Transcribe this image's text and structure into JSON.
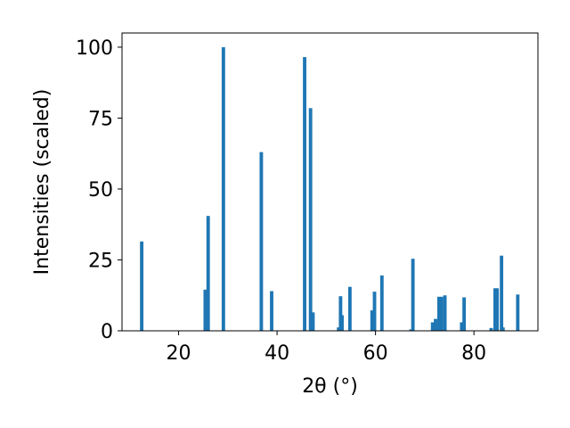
{
  "chart_data": {
    "type": "bar",
    "xlabel": "2θ (°)",
    "ylabel": "Intensities (scaled)",
    "xlim": [
      8.5,
      93
    ],
    "ylim": [
      0,
      105
    ],
    "xticks": [
      20,
      40,
      60,
      80
    ],
    "yticks": [
      0,
      25,
      50,
      75,
      100
    ],
    "grid": false,
    "bar_color": "#1f77b4",
    "bar_width": 0.7,
    "series": [
      {
        "x": [
          12.5,
          25.4,
          26.0,
          29.1,
          36.8,
          38.9,
          45.6,
          46.8,
          47.3,
          52.5,
          52.9,
          53.2,
          54.8,
          59.3,
          59.8,
          61.3,
          67.2,
          67.6,
          71.6,
          72.2,
          72.9,
          73.4,
          74.1,
          77.5,
          78.0,
          83.5,
          84.3,
          84.7,
          85.6,
          85.9,
          88.9
        ],
        "values": [
          31.5,
          14.5,
          40.5,
          100,
          63,
          14,
          96.5,
          78.5,
          6.5,
          1.2,
          12.2,
          5.5,
          15.5,
          7.2,
          13.8,
          19.5,
          0.5,
          25.4,
          3.0,
          4.2,
          12.0,
          12.0,
          12.5,
          3.0,
          11.8,
          1.0,
          15.0,
          15.0,
          26.5,
          1.2,
          12.8
        ]
      }
    ]
  }
}
